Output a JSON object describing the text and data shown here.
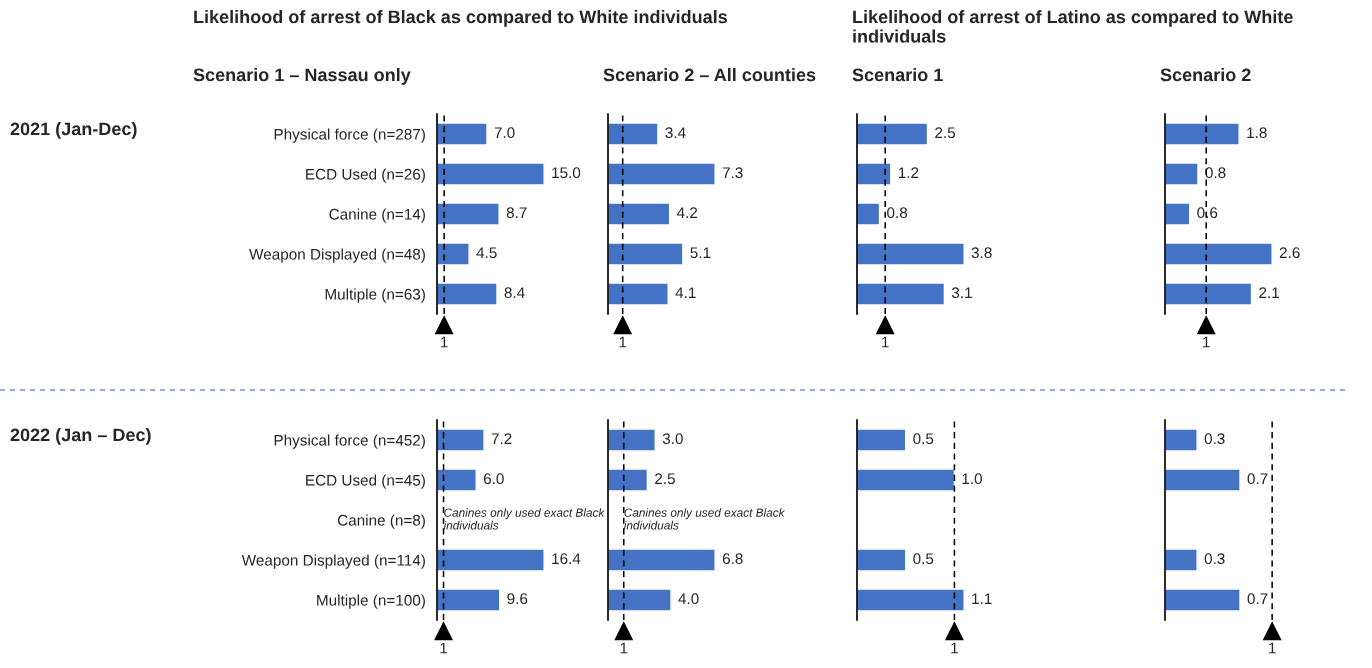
{
  "chart_data": [
    {
      "type": "bar",
      "orientation": "horizontal",
      "title": "Likelihood of arrest of Black as compared to White individuals",
      "subtitle": "Scenario 1 – Nassau only",
      "annotations": [
        "2021 (Jan-Dec)"
      ],
      "categories": [
        "Physical force (n=287)",
        "ECD Used (n=26)",
        "Canine (n=14)",
        "Weapon Displayed (n=48)",
        "Multiple (n=63)"
      ],
      "values": [
        7.0,
        15.0,
        8.7,
        4.5,
        8.4
      ],
      "value_labels": [
        "7.0",
        "15.0",
        "8.7",
        "4.5",
        "8.4"
      ],
      "color": "#4472c4",
      "ref_lines": [
        {
          "axis": "x",
          "value": 1,
          "label": "1",
          "line_style": "dashed"
        }
      ],
      "tick_labels": "y"
    },
    {
      "type": "bar",
      "orientation": "horizontal",
      "subtitle": "Scenario 2 – All counties",
      "categories": [
        "Physical force (n=287)",
        "ECD Used (n=26)",
        "Canine (n=14)",
        "Weapon Displayed (n=48)",
        "Multiple (n=63)"
      ],
      "values": [
        3.4,
        7.3,
        4.2,
        5.1,
        4.1
      ],
      "value_labels": [
        "3.4",
        "7.3",
        "4.2",
        "5.1",
        "4.1"
      ],
      "color": "#4472c4",
      "ref_lines": [
        {
          "axis": "x",
          "value": 1,
          "label": "1",
          "line_style": "dashed"
        }
      ],
      "tick_labels": false
    },
    {
      "type": "bar",
      "orientation": "horizontal",
      "title": "Likelihood of arrest of Latino as compared to White individuals",
      "subtitle": "Scenario 1",
      "categories": [
        "Physical force (n=287)",
        "ECD Used (n=26)",
        "Canine (n=14)",
        "Weapon Displayed (n=48)",
        "Multiple (n=63)"
      ],
      "values": [
        2.5,
        1.2,
        0.8,
        3.8,
        3.1
      ],
      "value_labels": [
        "2.5",
        "1.2",
        "0.8",
        "3.8",
        "3.1"
      ],
      "color": "#4472c4",
      "ref_lines": [
        {
          "axis": "x",
          "value": 1,
          "label": "1",
          "line_style": "dashed"
        }
      ],
      "tick_labels": false
    },
    {
      "type": "bar",
      "orientation": "horizontal",
      "subtitle": "Scenario 2",
      "categories": [
        "Physical force (n=287)",
        "ECD Used (n=26)",
        "Canine (n=14)",
        "Weapon Displayed (n=48)",
        "Multiple (n=63)"
      ],
      "values": [
        1.8,
        0.8,
        0.6,
        2.6,
        2.1
      ],
      "value_labels": [
        "1.8",
        "0.8",
        "0.6",
        "2.6",
        "2.1"
      ],
      "color": "#4472c4",
      "ref_lines": [
        {
          "axis": "x",
          "value": 1,
          "label": "1",
          "line_style": "dashed"
        }
      ],
      "tick_labels": false
    },
    {
      "type": "bar",
      "orientation": "horizontal",
      "annotations": [
        "2022 (Jan – Dec)",
        {
          "text": "Canines only used exact Black individuals",
          "x": 1,
          "y": "Canine (n=8)"
        }
      ],
      "categories": [
        "Physical force (n=452)",
        "ECD Used (n=45)",
        "Canine (n=8)",
        "Weapon Displayed (n=114)",
        "Multiple (n=100)"
      ],
      "values": [
        7.2,
        6.0,
        null,
        16.4,
        9.6
      ],
      "value_labels": [
        "7.2",
        "6.0",
        null,
        "16.4",
        "9.6"
      ],
      "color": "#4472c4",
      "ref_lines": [
        {
          "axis": "x",
          "value": 1,
          "label": "1",
          "line_style": "dashed"
        }
      ],
      "tick_labels": "y"
    },
    {
      "type": "bar",
      "orientation": "horizontal",
      "annotations": [
        {
          "text": "Canines only used exact Black individuals",
          "x": 1,
          "y": "Canine (n=8)"
        }
      ],
      "categories": [
        "Physical force (n=452)",
        "ECD Used (n=45)",
        "Canine (n=8)",
        "Weapon Displayed (n=114)",
        "Multiple (n=100)"
      ],
      "values": [
        3.0,
        2.5,
        null,
        6.8,
        4.0
      ],
      "value_labels": [
        "3.0",
        "2.5",
        null,
        "6.8",
        "4.0"
      ],
      "color": "#4472c4",
      "ref_lines": [
        {
          "axis": "x",
          "value": 1,
          "label": "1",
          "line_style": "dashed"
        }
      ],
      "tick_labels": false
    },
    {
      "type": "bar",
      "orientation": "horizontal",
      "categories": [
        "Physical force (n=452)",
        "ECD Used (n=45)",
        "Canine (n=8)",
        "Weapon Displayed (n=114)",
        "Multiple (n=100)"
      ],
      "values": [
        0.5,
        1.0,
        null,
        0.5,
        1.1
      ],
      "value_labels": [
        "0.5",
        "1.0",
        null,
        "0.5",
        "1.1"
      ],
      "color": "#4472c4",
      "ref_lines": [
        {
          "axis": "x",
          "value": 1,
          "label": "1",
          "line_style": "dashed"
        }
      ],
      "tick_labels": false
    },
    {
      "type": "bar",
      "orientation": "horizontal",
      "categories": [
        "Physical force (n=452)",
        "ECD Used (n=45)",
        "Canine (n=8)",
        "Weapon Displayed (n=114)",
        "Multiple (n=100)"
      ],
      "values": [
        0.3,
        0.7,
        null,
        0.3,
        0.7
      ],
      "value_labels": [
        "0.3",
        "0.7",
        null,
        "0.3",
        "0.7"
      ],
      "color": "#4472c4",
      "ref_lines": [
        {
          "axis": "x",
          "value": 1,
          "label": "1",
          "line_style": "dashed"
        }
      ],
      "tick_labels": false
    }
  ]
}
